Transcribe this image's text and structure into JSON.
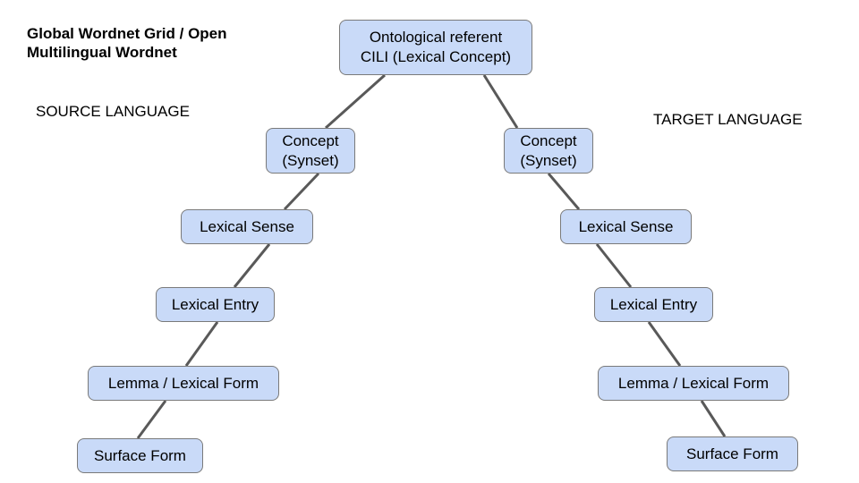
{
  "title": {
    "line1": "Global Wordnet Grid / Open",
    "line2": "Multilingual Wordnet"
  },
  "labels": {
    "source": "SOURCE LANGUAGE",
    "target": "TARGET LANGUAGE"
  },
  "root": {
    "line1": "Ontological referent",
    "line2": "CILI (Lexical Concept)"
  },
  "source_chain": {
    "concept_line1": "Concept",
    "concept_line2": "(Synset)",
    "lexical_sense": "Lexical Sense",
    "lexical_entry": "Lexical Entry",
    "lemma": "Lemma / Lexical Form",
    "surface_form": "Surface Form"
  },
  "target_chain": {
    "concept_line1": "Concept",
    "concept_line2": "(Synset)",
    "lexical_sense": "Lexical Sense",
    "lexical_entry": "Lexical Entry",
    "lemma": "Lemma / Lexical Form",
    "surface_form": "Surface Form"
  },
  "colors": {
    "node_fill": "#c9daf8",
    "node_border": "#7a7a7a",
    "connector": "#595959"
  }
}
